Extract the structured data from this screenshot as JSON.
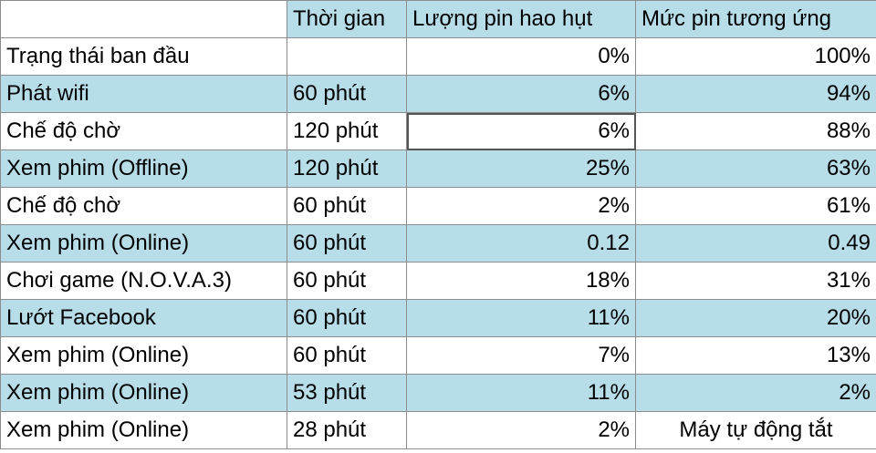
{
  "colors": {
    "band": "#b7dde8",
    "white": "#ffffff",
    "grid": "#8c8c8c"
  },
  "header": [
    "",
    "Thời gian",
    "Lượng pin hao hụt",
    "Mức pin tương ứng"
  ],
  "rows": [
    {
      "activity": "Trạng thái ban đầu",
      "duration": "",
      "drain": "0%",
      "level": "100%",
      "shaded": false
    },
    {
      "activity": "Phát wifi",
      "duration": "60 phút",
      "drain": "6%",
      "level": "94%",
      "shaded": true
    },
    {
      "activity": "Chế độ chờ",
      "duration": "120 phút",
      "drain": "6%",
      "level": "88%",
      "shaded": false
    },
    {
      "activity": "Xem phim (Offline)",
      "duration": "120 phút",
      "drain": "25%",
      "level": "63%",
      "shaded": true
    },
    {
      "activity": "Chế độ chờ",
      "duration": "60 phút",
      "drain": "2%",
      "level": "61%",
      "shaded": false
    },
    {
      "activity": "Xem phim (Online)",
      "duration": "60 phút",
      "drain": "0.12",
      "level": "0.49",
      "shaded": true
    },
    {
      "activity": "Chơi game (N.O.V.A.3)",
      "duration": "60 phút",
      "drain": "18%",
      "level": "31%",
      "shaded": false
    },
    {
      "activity": "Lướt Facebook",
      "duration": "60 phút",
      "drain": "11%",
      "level": "20%",
      "shaded": true
    },
    {
      "activity": "Xem phim (Online)",
      "duration": "60 phút",
      "drain": "7%",
      "level": "13%",
      "shaded": false
    },
    {
      "activity": "Xem phim (Online)",
      "duration": "53 phút",
      "drain": "11%",
      "level": "2%",
      "shaded": true
    },
    {
      "activity": "Xem phim (Online)",
      "duration": "28 phút",
      "drain": "2%",
      "level": "Máy tự động tắt",
      "shaded": false
    }
  ]
}
